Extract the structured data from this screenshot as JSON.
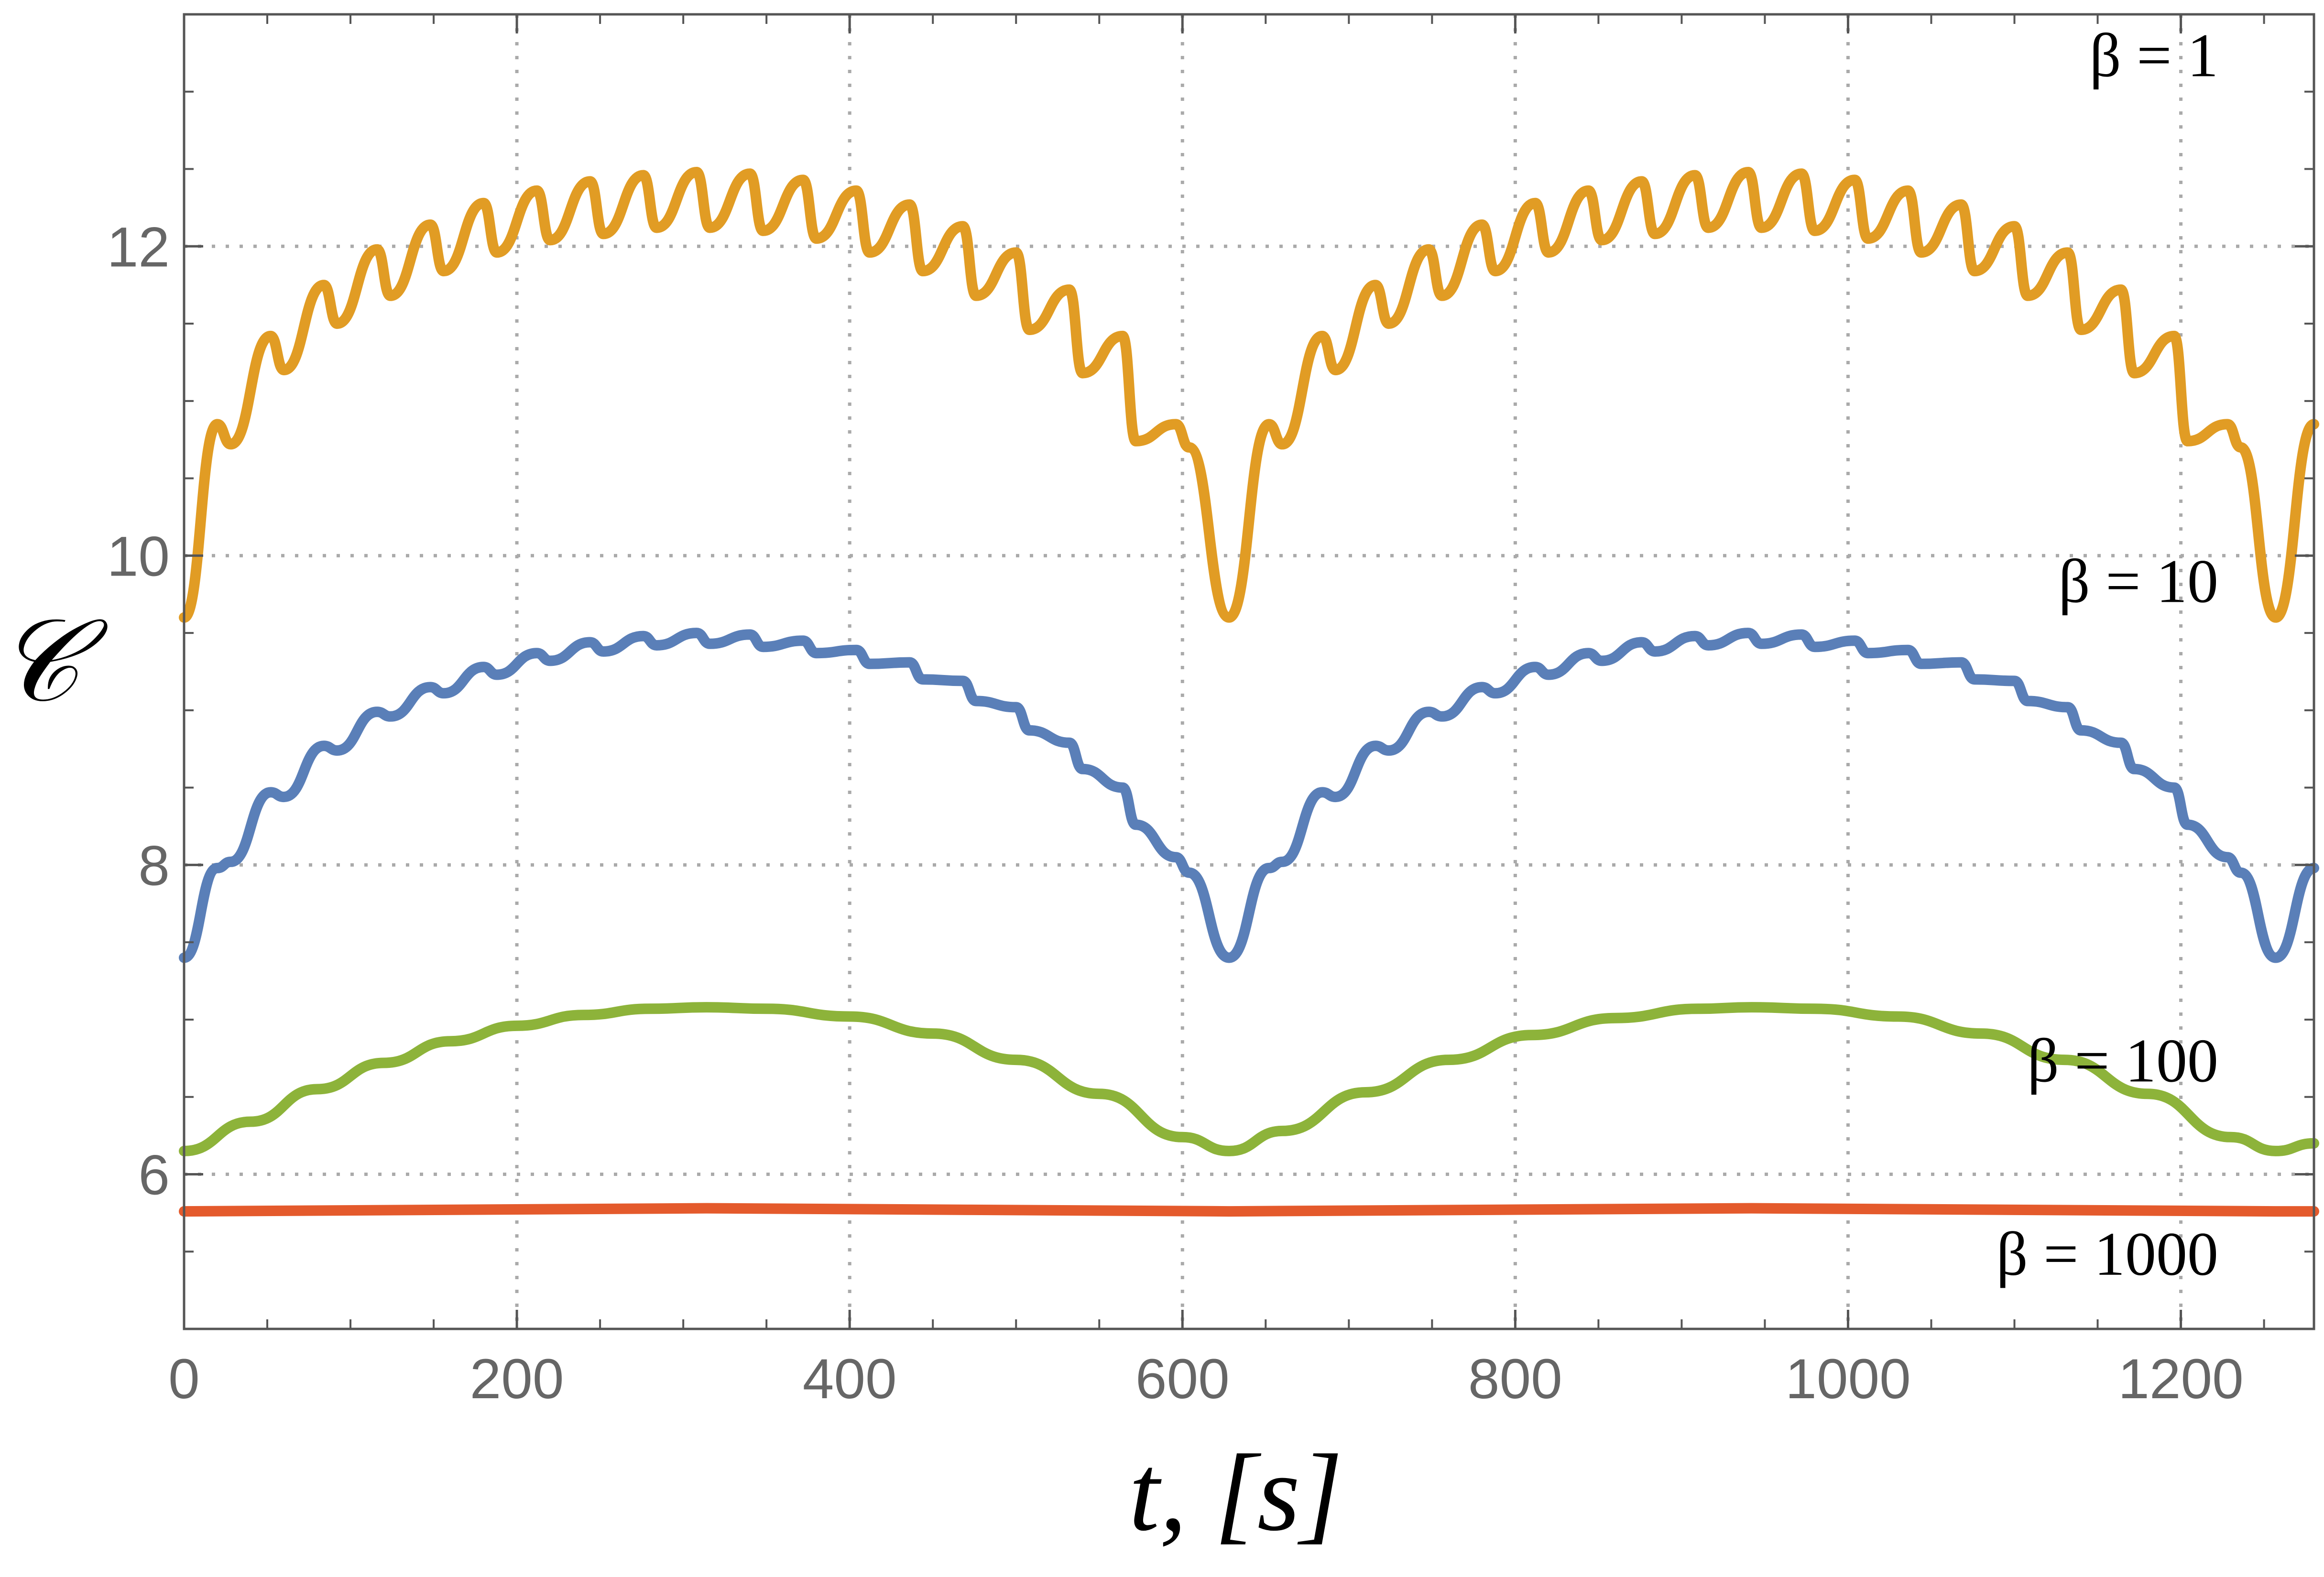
{
  "chart_data": {
    "type": "line",
    "title": "",
    "xlabel": "t, [s]",
    "ylabel": "𝒞",
    "xlim": [
      0,
      1280
    ],
    "ylim": [
      5,
      13.5
    ],
    "xticks": [
      0,
      200,
      400,
      600,
      800,
      1000,
      1200
    ],
    "yticks": [
      6,
      8,
      10,
      12
    ],
    "grid": true,
    "legend": "inline labels at right",
    "series": [
      {
        "name": "β = 1",
        "label": "β = 1",
        "color": "#E19C24",
        "x": [
          0,
          20,
          28,
          52,
          60,
          84,
          92,
          116,
          124,
          148,
          156,
          180,
          188,
          212,
          220,
          244,
          252,
          276,
          284,
          308,
          316,
          340,
          348,
          372,
          380,
          404,
          412,
          436,
          444,
          468,
          476,
          500,
          508,
          532,
          540,
          564,
          572,
          596,
          604,
          628,
          652,
          660,
          684,
          692,
          716,
          724,
          748,
          756,
          780,
          788,
          812,
          820,
          844,
          852,
          876,
          884,
          908,
          916,
          940,
          948,
          972,
          980,
          1004,
          1012,
          1036,
          1044,
          1068,
          1076,
          1100,
          1108,
          1132,
          1140,
          1164,
          1172,
          1196,
          1204,
          1228,
          1236,
          1257,
          1280
        ],
        "y": [
          9.6,
          10.85,
          10.72,
          11.42,
          11.2,
          11.75,
          11.5,
          11.98,
          11.68,
          12.14,
          11.84,
          12.28,
          11.96,
          12.36,
          12.04,
          12.42,
          12.08,
          12.46,
          12.12,
          12.48,
          12.12,
          12.47,
          12.1,
          12.43,
          12.05,
          12.36,
          11.96,
          12.27,
          11.84,
          12.13,
          11.68,
          11.96,
          11.46,
          11.72,
          11.18,
          11.42,
          10.74,
          10.85,
          10.7,
          9.6,
          10.85,
          10.72,
          11.42,
          11.2,
          11.75,
          11.5,
          11.98,
          11.68,
          12.14,
          11.84,
          12.28,
          11.96,
          12.36,
          12.04,
          12.42,
          12.08,
          12.46,
          12.12,
          12.48,
          12.12,
          12.47,
          12.1,
          12.43,
          12.05,
          12.36,
          11.96,
          12.27,
          11.84,
          12.13,
          11.68,
          11.96,
          11.46,
          11.72,
          11.18,
          11.42,
          10.74,
          10.85,
          10.7,
          9.6,
          10.85
        ]
      },
      {
        "name": "β = 10",
        "label": "β = 10",
        "color": "#5A7FB8",
        "x": [
          0,
          20,
          28,
          52,
          60,
          84,
          92,
          116,
          124,
          148,
          156,
          180,
          188,
          212,
          220,
          244,
          252,
          276,
          284,
          308,
          316,
          340,
          348,
          372,
          380,
          404,
          412,
          436,
          444,
          468,
          476,
          500,
          508,
          532,
          540,
          564,
          572,
          596,
          604,
          628,
          652,
          660,
          684,
          692,
          716,
          724,
          748,
          756,
          780,
          788,
          812,
          820,
          844,
          852,
          876,
          884,
          908,
          916,
          940,
          948,
          972,
          980,
          1004,
          1012,
          1036,
          1044,
          1068,
          1076,
          1100,
          1108,
          1132,
          1140,
          1164,
          1172,
          1196,
          1204,
          1228,
          1236,
          1257,
          1280
        ],
        "y": [
          7.4,
          7.98,
          8.02,
          8.47,
          8.44,
          8.77,
          8.74,
          8.99,
          8.96,
          9.15,
          9.11,
          9.28,
          9.23,
          9.37,
          9.32,
          9.44,
          9.38,
          9.48,
          9.42,
          9.5,
          9.43,
          9.49,
          9.41,
          9.45,
          9.37,
          9.39,
          9.3,
          9.31,
          9.2,
          9.19,
          9.06,
          9.02,
          8.87,
          8.79,
          8.62,
          8.5,
          8.26,
          8.05,
          7.95,
          7.4,
          7.98,
          8.02,
          8.47,
          8.44,
          8.77,
          8.74,
          8.99,
          8.96,
          9.15,
          9.11,
          9.28,
          9.23,
          9.37,
          9.32,
          9.44,
          9.38,
          9.48,
          9.42,
          9.5,
          9.43,
          9.49,
          9.41,
          9.45,
          9.37,
          9.39,
          9.3,
          9.31,
          9.2,
          9.19,
          9.06,
          9.02,
          8.87,
          8.79,
          8.62,
          8.5,
          8.26,
          8.05,
          7.95,
          7.4,
          7.98
        ]
      },
      {
        "name": "β = 100",
        "label": "β = 100",
        "color": "#8DB33A",
        "x": [
          0,
          40,
          80,
          120,
          160,
          200,
          240,
          280,
          314,
          350,
          400,
          450,
          500,
          550,
          600,
          628,
          660,
          710,
          760,
          810,
          860,
          910,
          942,
          980,
          1030,
          1080,
          1130,
          1180,
          1230,
          1257,
          1280
        ],
        "y": [
          6.15,
          6.34,
          6.55,
          6.72,
          6.86,
          6.96,
          7.03,
          7.07,
          7.08,
          7.07,
          7.02,
          6.91,
          6.74,
          6.52,
          6.24,
          6.15,
          6.28,
          6.53,
          6.74,
          6.9,
          7.01,
          7.07,
          7.08,
          7.07,
          7.02,
          6.91,
          6.74,
          6.52,
          6.24,
          6.15,
          6.2
        ]
      },
      {
        "name": "β = 1000",
        "label": "β = 1000",
        "color": "#E45A2C",
        "x": [
          0,
          314,
          628,
          942,
          1257,
          1280
        ],
        "y": [
          5.76,
          5.78,
          5.76,
          5.78,
          5.76,
          5.76
        ]
      }
    ]
  }
}
